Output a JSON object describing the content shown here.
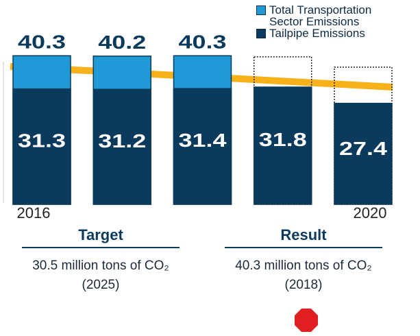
{
  "chart_data": {
    "type": "bar",
    "categories": [
      "2016",
      null,
      null,
      null,
      "2020"
    ],
    "ylim": [
      0,
      45
    ],
    "series": [
      {
        "name": "Total Transportation Sector Emissions",
        "color": "#1f9ad6",
        "values": [
          40.3,
          40.2,
          40.3,
          40.0,
          37.2
        ],
        "value_labels": [
          "40.3",
          "40.2",
          "40.3",
          null,
          null
        ],
        "styles": [
          "solid",
          "solid",
          "solid",
          "dotted",
          "dotted"
        ]
      },
      {
        "name": "Tailpipe Emissions",
        "color": "#0b3a5c",
        "values": [
          31.3,
          31.2,
          31.4,
          31.8,
          27.4
        ]
      }
    ],
    "target_line": {
      "color": "#f7b21b",
      "values": [
        37.4,
        31.8
      ]
    },
    "annotations": [
      {
        "title": "Target",
        "text": "30.5 million tons of CO₂ (2025)"
      },
      {
        "title": "Result",
        "text": "40.3 million tons of CO₂ (2018)"
      }
    ]
  }
}
